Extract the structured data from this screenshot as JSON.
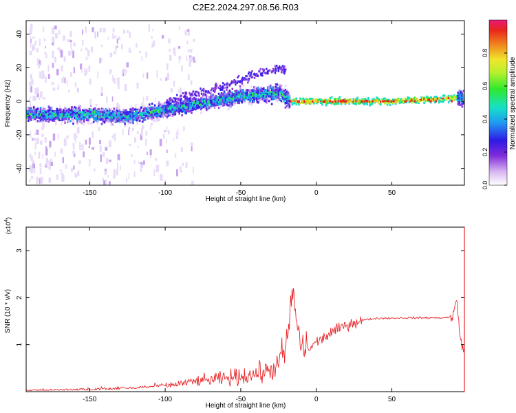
{
  "figure": {
    "title": "C2E2.2024.297.08.56.R03"
  },
  "chart_data": [
    {
      "type": "heatmap",
      "xlabel": "Height of straight line (km)",
      "ylabel": "Frequency (Hz)",
      "xlim": [
        -192,
        98
      ],
      "ylim": [
        -50,
        48
      ],
      "xticks": [
        -150,
        -100,
        -50,
        0,
        50
      ],
      "yticks": [
        -40,
        -20,
        0,
        20,
        40
      ],
      "colorbar": {
        "label": "Normalized spectral amplitude",
        "range": [
          0,
          1
        ],
        "ticks": [
          0.0,
          0.2,
          0.4,
          0.6,
          0.8
        ]
      },
      "ridge": {
        "note_x_km": [
          -190,
          -150,
          -125,
          -100,
          -50,
          -25,
          -18,
          0,
          50,
          95
        ],
        "frequency_hz": [
          -8,
          -8,
          -9,
          -5,
          3,
          5,
          0,
          0,
          0,
          2
        ]
      }
    },
    {
      "type": "line",
      "xlabel": "Height of straight line (km)",
      "ylabel": "SNR (10 * v/v)",
      "yscale_label": "(x10",
      "yscale_exp": "4",
      "xlim": [
        -192,
        98
      ],
      "ylim": [
        0,
        3.5
      ],
      "xticks": [
        -150,
        -100,
        -50,
        0,
        50
      ],
      "yticks": [
        1,
        2,
        3
      ],
      "series": [
        {
          "color": "#e8262a",
          "x": [
            -190,
            -150,
            -120,
            -100,
            -80,
            -60,
            -40,
            -30,
            -25,
            -20,
            -17,
            -15,
            -12,
            -10,
            -5,
            0,
            10,
            20,
            30,
            40,
            60,
            80,
            90,
            93,
            95,
            98
          ],
          "y": [
            0.02,
            0.03,
            0.06,
            0.12,
            0.22,
            0.28,
            0.38,
            0.45,
            0.6,
            0.9,
            1.8,
            2.1,
            1.2,
            1.0,
            0.9,
            1.05,
            1.25,
            1.42,
            1.52,
            1.56,
            1.57,
            1.57,
            1.58,
            1.95,
            1.2,
            0.8
          ]
        }
      ]
    }
  ]
}
